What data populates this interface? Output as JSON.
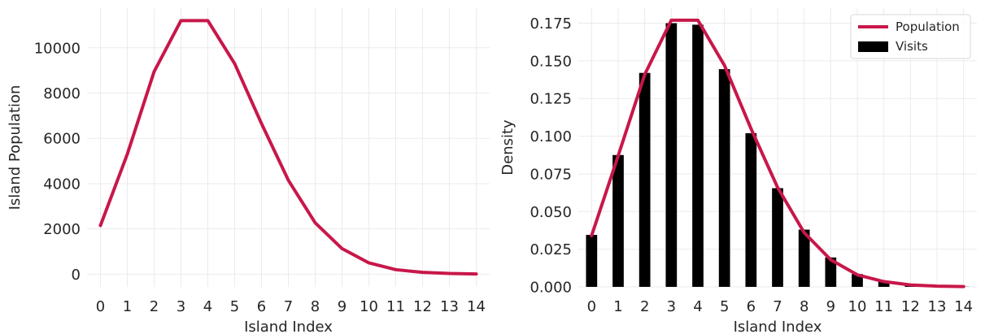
{
  "colors": {
    "line": "#c8174a",
    "bar": "#000000",
    "grid": "#ebebeb",
    "text": "#262626"
  },
  "chart_data": [
    {
      "type": "line",
      "xlabel": "Island Index",
      "ylabel": "Island Population",
      "x": [
        0,
        1,
        2,
        3,
        4,
        5,
        6,
        7,
        8,
        9,
        10,
        11,
        12,
        13,
        14
      ],
      "xticks": [
        "0",
        "1",
        "2",
        "3",
        "4",
        "5",
        "6",
        "7",
        "8",
        "9",
        "10",
        "11",
        "12",
        "13",
        "14"
      ],
      "yticks": [
        0,
        2000,
        4000,
        6000,
        8000,
        10000
      ],
      "ytick_labels": [
        "0",
        "2000",
        "4000",
        "6000",
        "8000",
        "10000"
      ],
      "xlim": [
        -0.5,
        14.5
      ],
      "ylim": [
        -560,
        11750
      ],
      "grid": true,
      "series": [
        {
          "values": [
            2150,
            5300,
            8950,
            11200,
            11200,
            9300,
            6650,
            4150,
            2270,
            1130,
            500,
            200,
            80,
            30,
            10
          ]
        }
      ]
    },
    {
      "type": "bar",
      "xlabel": "Island Index",
      "ylabel": "Density",
      "x": [
        0,
        1,
        2,
        3,
        4,
        5,
        6,
        7,
        8,
        9,
        10,
        11,
        12,
        13,
        14
      ],
      "xticks": [
        "0",
        "1",
        "2",
        "3",
        "4",
        "5",
        "6",
        "7",
        "8",
        "9",
        "10",
        "11",
        "12",
        "13",
        "14"
      ],
      "yticks": [
        0,
        0.025,
        0.05,
        0.075,
        0.1,
        0.125,
        0.15,
        0.175
      ],
      "ytick_labels": [
        "0.000",
        "0.025",
        "0.050",
        "0.075",
        "0.100",
        "0.125",
        "0.150",
        "0.175"
      ],
      "xlim": [
        -0.5,
        14.5
      ],
      "ylim": [
        0,
        0.185
      ],
      "grid": true,
      "legend": {
        "placement": "top-right",
        "entries": [
          "Population",
          "Visits"
        ]
      },
      "series": [
        {
          "name": "Population",
          "type": "line",
          "values": [
            0.034,
            0.087,
            0.141,
            0.177,
            0.177,
            0.147,
            0.105,
            0.066,
            0.036,
            0.018,
            0.008,
            0.0035,
            0.0013,
            0.0005,
            0.0002
          ]
        },
        {
          "name": "Visits",
          "type": "bar",
          "values": [
            0.0345,
            0.0875,
            0.142,
            0.175,
            0.174,
            0.1445,
            0.102,
            0.0655,
            0.038,
            0.0195,
            0.0085,
            0.0035,
            0.0012,
            0.0004,
            0.0001
          ]
        }
      ]
    }
  ]
}
